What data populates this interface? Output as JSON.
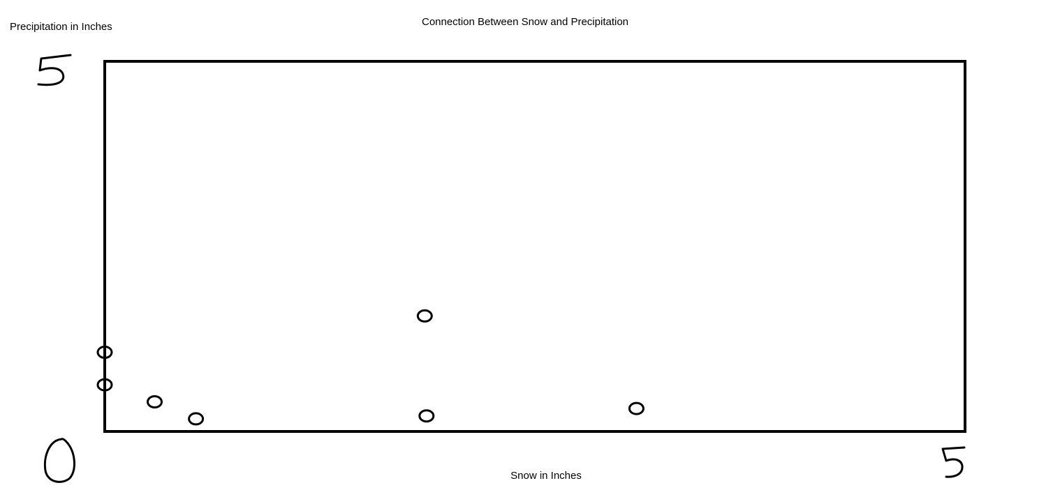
{
  "chart_data": {
    "type": "scatter",
    "title": "Connection Between Snow and Precipitation",
    "xlabel": "Snow in Inches",
    "ylabel": "Precipitation in Inches",
    "xlim": [
      0,
      5
    ],
    "ylim": [
      0,
      5
    ],
    "x_ticks": [
      "0",
      "5"
    ],
    "y_ticks": [
      "5"
    ],
    "grid": false,
    "legend": "none",
    "colors": {
      "ink": "#000000",
      "background": "#ffffff"
    },
    "points": [
      {
        "x": 0.0,
        "y": 1.07
      },
      {
        "x": 0.0,
        "y": 0.63
      },
      {
        "x": 0.29,
        "y": 0.4
      },
      {
        "x": 0.53,
        "y": 0.17
      },
      {
        "x": 1.86,
        "y": 1.56
      },
      {
        "x": 1.87,
        "y": 0.21
      },
      {
        "x": 3.09,
        "y": 0.31
      }
    ]
  }
}
